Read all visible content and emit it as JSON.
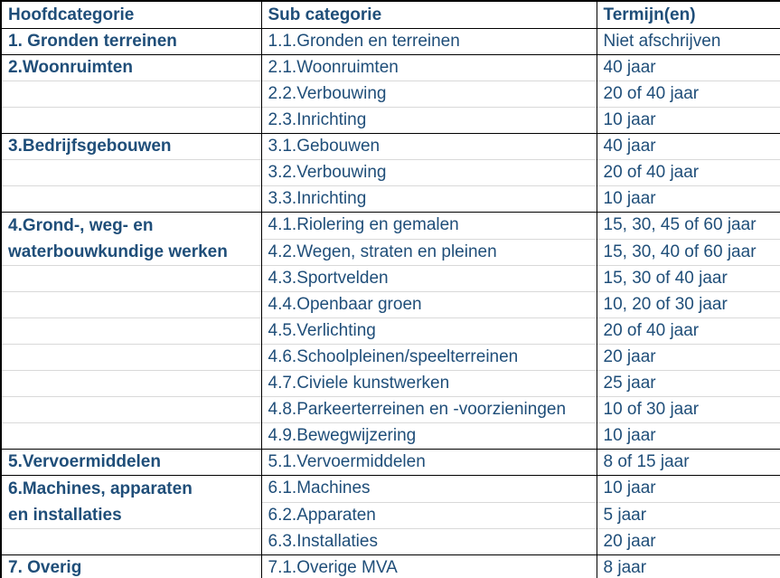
{
  "chart_data": {
    "type": "table",
    "title": "",
    "columns": [
      "Hoofdcategorie",
      "Sub categorie",
      "Termijn(en)"
    ],
    "rows": [
      {
        "main": "1. Gronden terreinen",
        "sub": "1.1.Gronden en terreinen",
        "term": "Niet afschrijven",
        "new_group": true
      },
      {
        "main": "2.Woonruimten",
        "sub": "2.1.Woonruimten",
        "term": "40 jaar",
        "new_group": true
      },
      {
        "main": "",
        "sub": "2.2.Verbouwing",
        "term": "20 of 40 jaar"
      },
      {
        "main": "",
        "sub": "2.3.Inrichting",
        "term": "10 jaar"
      },
      {
        "main": "3.Bedrijfsgebouwen",
        "sub": "3.1.Gebouwen",
        "term": "40 jaar",
        "new_group": true
      },
      {
        "main": "",
        "sub": "3.2.Verbouwing",
        "term": "20 of 40 jaar"
      },
      {
        "main": "",
        "sub": "3.3.Inrichting",
        "term": "10 jaar"
      },
      {
        "main": "4.Grond-, weg- en waterbouwkundige werken",
        "main_lines": [
          "4.Grond-, weg- en",
          "waterbouwkundige werken"
        ],
        "main_span": 2,
        "sub": "4.1.Riolering en gemalen",
        "term": "15, 30, 45 of 60 jaar",
        "new_group": true
      },
      {
        "main_merged": true,
        "sub": "4.2.Wegen, straten en pleinen",
        "term": "15, 30, 40 of 60 jaar"
      },
      {
        "main": "",
        "sub": "4.3.Sportvelden",
        "term": "15, 30 of 40 jaar"
      },
      {
        "main": "",
        "sub": "4.4.Openbaar groen",
        "term": "10, 20 of 30 jaar"
      },
      {
        "main": "",
        "sub": "4.5.Verlichting",
        "term": "20 of 40 jaar"
      },
      {
        "main": "",
        "sub": "4.6.Schoolpleinen/speelterreinen",
        "term": "20 jaar"
      },
      {
        "main": "",
        "sub": "4.7.Civiele kunstwerken",
        "term": "25 jaar"
      },
      {
        "main": "",
        "sub": "4.8.Parkeerterreinen en -voorzieningen",
        "term": "10 of 30 jaar"
      },
      {
        "main": "",
        "sub": "4.9.Bewegwijzering",
        "term": "10 jaar"
      },
      {
        "main": "5.Vervoermiddelen",
        "sub": "5.1.Vervoermiddelen",
        "term": "8 of 15 jaar",
        "new_group": true
      },
      {
        "main": "6.Machines, apparaten en installaties",
        "main_lines": [
          "6.Machines, apparaten",
          "en installaties"
        ],
        "main_span": 2,
        "sub": "6.1.Machines",
        "term": "10 jaar",
        "new_group": true
      },
      {
        "main_merged": true,
        "sub": "6.2.Apparaten",
        "term": "5 jaar"
      },
      {
        "main": "",
        "sub": "6.3.Installaties",
        "term": "20 jaar"
      },
      {
        "main": "7. Overig",
        "sub": "7.1.Overige MVA",
        "term": "8 jaar",
        "new_group": true
      }
    ],
    "layout": {
      "grid": "on",
      "group_border_color": "#000000",
      "row_border_color": "#d9d9d9",
      "text_color": "#1f4e79",
      "background_color": "#ffffff",
      "header_bold": true,
      "main_column_bold": true
    }
  }
}
